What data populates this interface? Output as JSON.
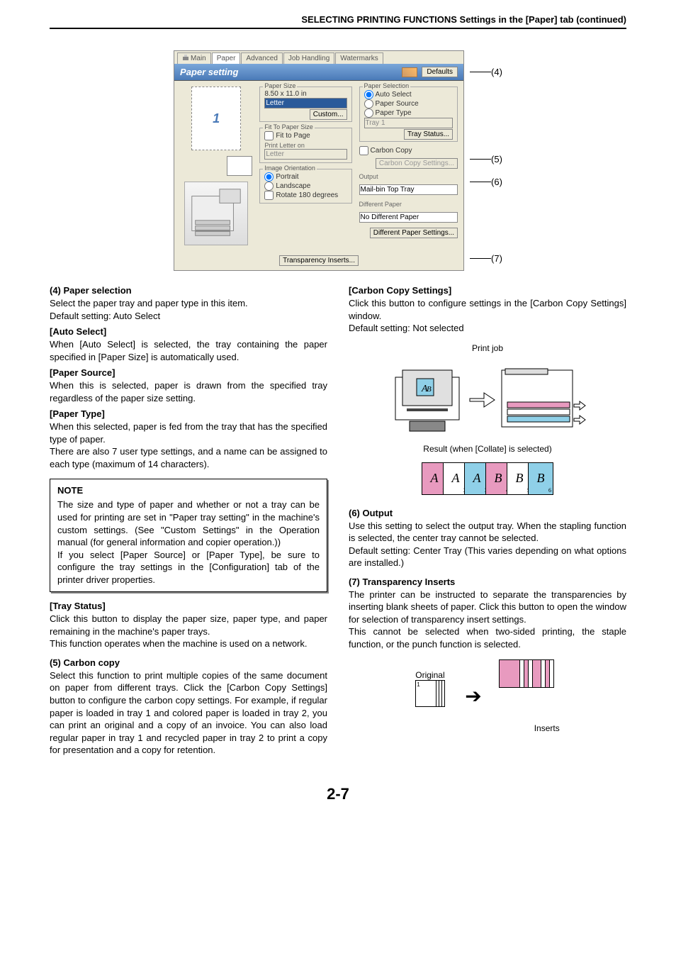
{
  "header": {
    "title": "SELECTING PRINTING FUNCTIONS Settings in the [Paper] tab (continued)"
  },
  "dialog": {
    "tabs": [
      "Main",
      "Paper",
      "Advanced",
      "Job Handling",
      "Watermarks"
    ],
    "active_tab": 1,
    "banner": {
      "title": "Paper setting",
      "defaults": "Defaults"
    },
    "preview_num": "1",
    "paper_size": {
      "label": "Paper Size",
      "dim": "8.50 x 11.0 in",
      "value": "Letter",
      "custom": "Custom..."
    },
    "fit": {
      "label": "Fit To Paper Size",
      "cb": "Fit to Page",
      "pl": "Print Letter on",
      "val": "Letter"
    },
    "orient": {
      "label": "Image Orientation",
      "portrait": "Portrait",
      "landscape": "Landscape",
      "rotate": "Rotate 180 degrees"
    },
    "sel": {
      "label": "Paper Selection",
      "auto": "Auto Select",
      "src": "Paper Source",
      "type": "Paper Type",
      "tray": "Tray 1",
      "status": "Tray Status..."
    },
    "cc": {
      "cb": "Carbon Copy",
      "btn": "Carbon Copy Settings..."
    },
    "out": {
      "label": "Output",
      "val": "Mail-bin Top Tray"
    },
    "dp": {
      "label": "Different Paper",
      "val": "No Different Paper",
      "btn": "Different Paper Settings..."
    },
    "ti": "Transparency Inserts..."
  },
  "callouts": {
    "c4": "(4)",
    "c5": "(5)",
    "c6": "(6)",
    "c7": "(7)"
  },
  "left": {
    "s4": {
      "h": "(4) Paper selection",
      "p1": "Select the paper tray and paper type in this item.",
      "p2": "Default setting: Auto Select",
      "auto_h": "[Auto Select]",
      "auto_p": "When [Auto Select] is selected, the tray containing the paper specified in [Paper Size] is automatically used.",
      "src_h": "[Paper Source]",
      "src_p": "When this is selected, paper is drawn from the specified tray regardless of the paper size setting.",
      "type_h": "[Paper Type]",
      "type_p1": "When this selected, paper is fed from the tray that has the specified type of paper.",
      "type_p2": "There are also 7 user type settings, and a name can be assigned to each type (maximum of 14 characters).",
      "tray_h": "[Tray Status]",
      "tray_p1": "Click this button to display the paper size, paper type, and paper remaining in the machine's paper trays.",
      "tray_p2": "This function operates when the machine is used on a network."
    },
    "note": {
      "h": "NOTE",
      "p1": "The size and type of paper and whether or not a tray can be used for printing are set in \"Paper tray setting\" in the machine's custom settings. (See \"Custom Settings\" in the Operation manual (for general information and copier operation.))",
      "p2": "If you select [Paper Source] or [Paper Type], be sure to configure the tray settings in the [Configuration] tab of the printer driver properties."
    },
    "s5": {
      "h": "(5) Carbon copy",
      "p": "Select this function to print multiple copies of the same document on paper from different trays. Click the [Carbon Copy Settings] button to configure the carbon copy settings. For example, if regular paper is loaded in tray 1 and colored paper is loaded in tray 2, you can print an original and a copy of an invoice. You can also load regular paper in tray 1 and recycled paper in tray 2 to print a copy for presentation and a copy for retention."
    }
  },
  "right": {
    "cc": {
      "h": "[Carbon Copy Settings]",
      "p1": "Click this button to configure settings in the [Carbon Copy Settings] window.",
      "p2": "Default setting: Not selected",
      "pj": "Print job",
      "res": "Result (when [Collate] is selected)"
    },
    "s6": {
      "h": "(6) Output",
      "p1": "Use this setting to select the output tray. When the stapling function is selected, the center tray cannot be selected.",
      "p2": "Default setting: Center Tray (This varies depending on what options are installed.)"
    },
    "s7": {
      "h": "(7) Transparency Inserts",
      "p1": "The printer can be instructed to separate the transparencies by inserting blank sheets of paper. Click this button to open the window for selection of transparency insert settings.",
      "p2": "This cannot be selected when two-sided printing, the staple function, or the punch function is selected.",
      "orig": "Original",
      "ins": "Inserts"
    }
  },
  "stack": [
    {
      "l": "A",
      "c": "c-pink",
      "n": "1"
    },
    {
      "l": "A",
      "c": "c-white",
      "n": "2"
    },
    {
      "l": "A",
      "c": "c-cyan",
      "n": "3"
    },
    {
      "l": "B",
      "c": "c-pink",
      "n": "4"
    },
    {
      "l": "B",
      "c": "c-white",
      "n": "5"
    },
    {
      "l": "B",
      "c": "c-cyan",
      "n": "6"
    }
  ],
  "footer": "2-7",
  "colors": {
    "banner_grad_top": "#7aa7d9",
    "banner_grad_bot": "#4a7ab8",
    "panel": "#ece9d8",
    "pink": "#e89abf",
    "cyan": "#8fd0e8"
  }
}
